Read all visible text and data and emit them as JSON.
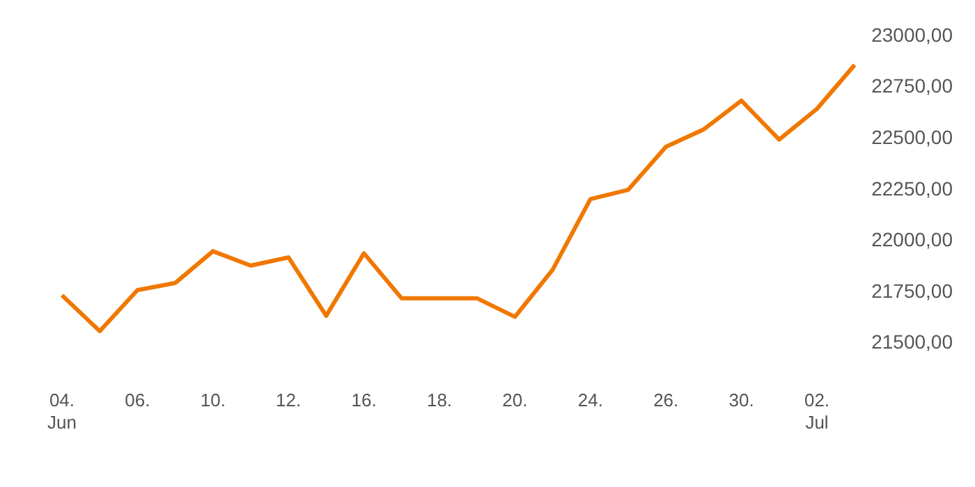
{
  "chart_data": {
    "type": "line",
    "categories": [
      "04. Jun",
      null,
      "06.",
      null,
      "10.",
      null,
      "12.",
      null,
      "16.",
      null,
      "18.",
      null,
      "20.",
      null,
      "24.",
      null,
      "26.",
      null,
      "30.",
      null,
      "02. Jul",
      null
    ],
    "series": [
      {
        "color": "#f07800",
        "values": [
          21735,
          21560,
          21760,
          21795,
          21950,
          21880,
          21920,
          21635,
          21940,
          21720,
          21720,
          21720,
          21630,
          21860,
          22205,
          22250,
          22460,
          22545,
          22685,
          22495,
          22645,
          22860
        ]
      }
    ],
    "ylim": [
      21500,
      23000
    ],
    "yticks": [
      {
        "value": 21500,
        "label": "21500,00"
      },
      {
        "value": 21750,
        "label": "21750,00"
      },
      {
        "value": 22000,
        "label": "22000,00"
      },
      {
        "value": 22250,
        "label": "22250,00"
      },
      {
        "value": 22500,
        "label": "22500,00"
      },
      {
        "value": 22750,
        "label": "22750,00"
      },
      {
        "value": 23000,
        "label": "23000,00"
      }
    ],
    "grid": false,
    "legend": false,
    "marker": "none",
    "line_style": "solid"
  }
}
